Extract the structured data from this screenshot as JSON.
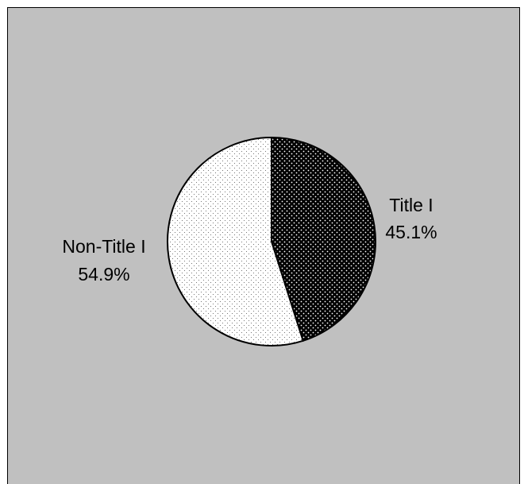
{
  "chart_data": {
    "type": "pie",
    "title": "",
    "slices": [
      {
        "label": "Title I",
        "value": 45.1,
        "value_label": "45.1%",
        "pattern": "dense-dots",
        "fill_color": "#000000",
        "dot_color": "#ffffff"
      },
      {
        "label": "Non-Title I",
        "value": 54.9,
        "value_label": "54.9%",
        "pattern": "sparse-dots",
        "fill_color": "#ffffff",
        "dot_color": "#000000"
      }
    ],
    "start_angle": "12 o'clock",
    "direction": "clockwise",
    "legend": "none",
    "background_color": "#c0c0c0"
  }
}
